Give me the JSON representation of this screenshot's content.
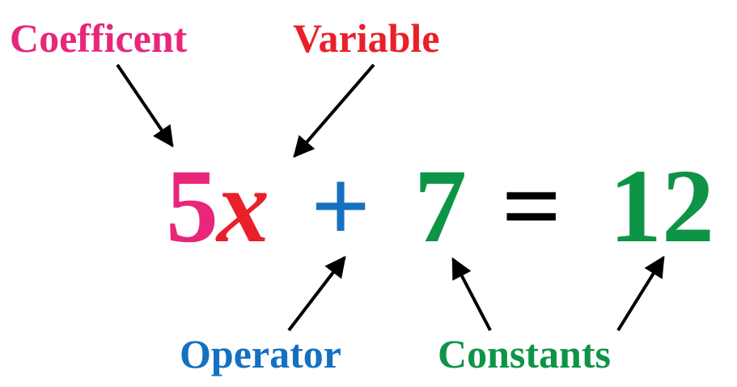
{
  "labels": {
    "coefficient": "Coefficent",
    "variable": "Variable",
    "operator": "Operator",
    "constants": "Constants"
  },
  "equation": {
    "coefficient": "5",
    "variable": "x",
    "operator": "+",
    "constant_left": "7",
    "equals": "=",
    "constant_right": "12"
  },
  "colors": {
    "coefficient": "#e8267a",
    "variable": "#e8202a",
    "operator": "#1570c0",
    "constants": "#0e9447",
    "equals": "#000000",
    "arrows": "#000000"
  }
}
